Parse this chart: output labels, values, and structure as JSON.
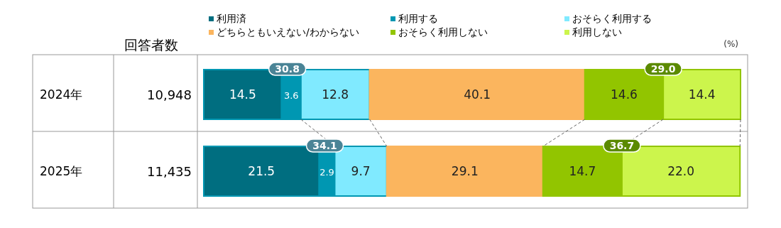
{
  "chart_data": {
    "type": "bar",
    "orientation": "horizontal",
    "stacked": true,
    "legend": "top",
    "xlim": [
      0,
      100
    ],
    "ylabel": "回答者数",
    "categories": [
      "2024年",
      "2025年"
    ],
    "series": [
      {
        "name": "利用済",
        "color": "#006e80",
        "values": [
          14.5,
          21.5
        ],
        "value_labels": [
          "14.5",
          "21.5"
        ]
      },
      {
        "name": "利用する",
        "color": "#0097b2",
        "values": [
          3.6,
          2.9
        ],
        "value_labels": [
          "3.6",
          "2.9"
        ]
      },
      {
        "name": "おそらく利用する",
        "color": "#80eaff",
        "values": [
          12.8,
          9.7
        ],
        "value_labels": [
          "12.8",
          "9.7"
        ]
      },
      {
        "name": "どちらともいえない/わからない",
        "color": "#fbb55e",
        "values": [
          40.1,
          29.1
        ],
        "value_labels": [
          "40.1",
          "29.1"
        ]
      },
      {
        "name": "おそらく利用しない",
        "color": "#92c500",
        "values": [
          14.6,
          14.7
        ],
        "value_labels": [
          "14.6",
          "14.7"
        ]
      },
      {
        "name": "利用しない",
        "color": "#ccf54c",
        "values": [
          14.4,
          22.0
        ],
        "value_labels": [
          "14.4",
          "22.0"
        ]
      }
    ],
    "annotations": [
      "10,948",
      "11,435",
      "30.8",
      "29.0",
      "34.1",
      "36.7",
      "(%)"
    ]
  }
}
